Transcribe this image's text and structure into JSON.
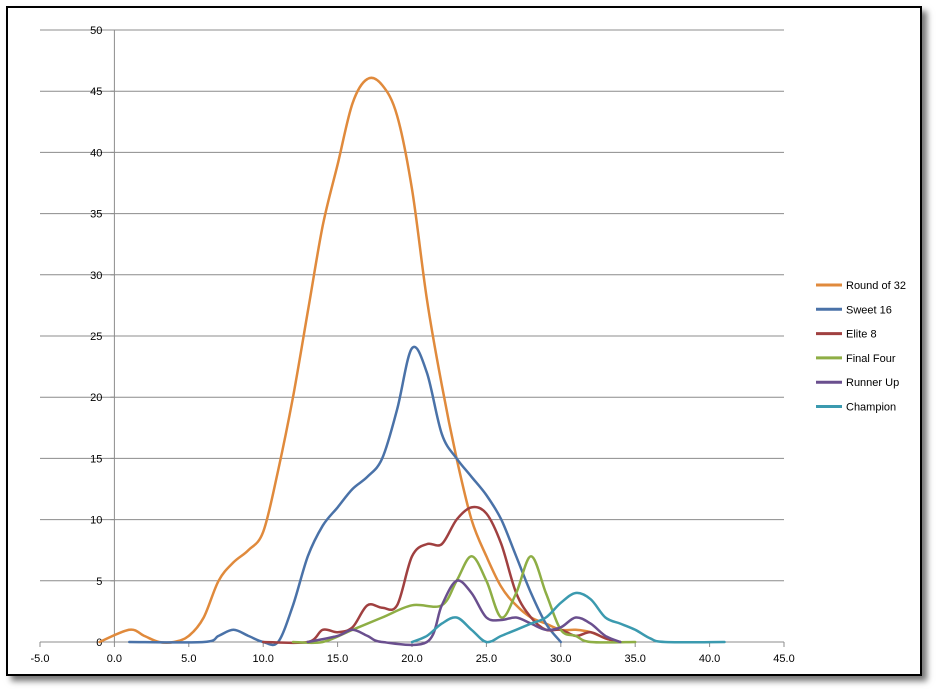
{
  "chart_data": {
    "type": "line",
    "title": "",
    "xlabel": "",
    "ylabel": "",
    "xlim": [
      -5,
      45
    ],
    "ylim": [
      0,
      50
    ],
    "x_ticks": [
      "-5.0",
      "0.0",
      "5.0",
      "10.0",
      "15.0",
      "20.0",
      "25.0",
      "30.0",
      "35.0",
      "40.0",
      "45.0"
    ],
    "y_ticks": [
      "0",
      "5",
      "10",
      "15",
      "20",
      "25",
      "30",
      "35",
      "40",
      "45",
      "50"
    ],
    "grid": "horizontal",
    "legend_position": "right",
    "series": [
      {
        "name": "Round of 32",
        "color": "#E08A3C",
        "points": [
          [
            -1,
            0
          ],
          [
            1,
            1
          ],
          [
            2,
            0.5
          ],
          [
            3,
            0
          ],
          [
            4,
            0
          ],
          [
            5,
            0.5
          ],
          [
            6,
            2
          ],
          [
            7,
            5
          ],
          [
            8,
            6.5
          ],
          [
            9,
            7.5
          ],
          [
            10,
            9
          ],
          [
            11,
            14
          ],
          [
            12,
            20
          ],
          [
            13,
            27
          ],
          [
            14,
            34
          ],
          [
            15,
            39
          ],
          [
            16,
            44
          ],
          [
            17,
            46
          ],
          [
            18,
            45.5
          ],
          [
            19,
            43
          ],
          [
            20,
            37
          ],
          [
            21,
            28
          ],
          [
            22,
            21
          ],
          [
            23,
            15
          ],
          [
            24,
            10
          ],
          [
            25,
            7
          ],
          [
            26,
            4.5
          ],
          [
            27,
            3
          ],
          [
            28,
            2
          ],
          [
            29,
            1.5
          ],
          [
            30,
            1
          ],
          [
            31,
            1
          ],
          [
            32,
            0.8
          ],
          [
            33,
            0.3
          ],
          [
            34,
            0
          ]
        ]
      },
      {
        "name": "Sweet 16",
        "color": "#4A72A8",
        "points": [
          [
            1,
            0
          ],
          [
            6,
            0
          ],
          [
            7,
            0.5
          ],
          [
            8,
            1
          ],
          [
            9,
            0.5
          ],
          [
            10,
            0
          ],
          [
            11,
            0
          ],
          [
            12,
            3
          ],
          [
            13,
            7
          ],
          [
            14,
            9.5
          ],
          [
            15,
            11
          ],
          [
            16,
            12.5
          ],
          [
            17,
            13.5
          ],
          [
            18,
            15
          ],
          [
            19,
            19
          ],
          [
            20,
            24
          ],
          [
            21,
            22
          ],
          [
            22,
            17
          ],
          [
            23,
            15
          ],
          [
            24,
            13.5
          ],
          [
            25,
            12
          ],
          [
            26,
            10
          ],
          [
            27,
            7
          ],
          [
            28,
            4
          ],
          [
            29,
            1.5
          ],
          [
            30,
            0
          ]
        ]
      },
      {
        "name": "Elite 8",
        "color": "#A04040",
        "points": [
          [
            10,
            0
          ],
          [
            13,
            0
          ],
          [
            14,
            1
          ],
          [
            15,
            0.8
          ],
          [
            16,
            1.2
          ],
          [
            17,
            3
          ],
          [
            18,
            2.8
          ],
          [
            19,
            3
          ],
          [
            20,
            7
          ],
          [
            21,
            8
          ],
          [
            22,
            8
          ],
          [
            23,
            10
          ],
          [
            24,
            11
          ],
          [
            25,
            10.5
          ],
          [
            26,
            8
          ],
          [
            27,
            4
          ],
          [
            28,
            2
          ],
          [
            29,
            1
          ],
          [
            30,
            1
          ],
          [
            31,
            0.5
          ],
          [
            32,
            0.8
          ],
          [
            33,
            0.3
          ],
          [
            34,
            0
          ]
        ]
      },
      {
        "name": "Final Four",
        "color": "#8EAE45",
        "points": [
          [
            12,
            0
          ],
          [
            14,
            0
          ],
          [
            16,
            1
          ],
          [
            18,
            2
          ],
          [
            20,
            3
          ],
          [
            22,
            3
          ],
          [
            23,
            5
          ],
          [
            24,
            7
          ],
          [
            25,
            5
          ],
          [
            26,
            2
          ],
          [
            27,
            4
          ],
          [
            28,
            7
          ],
          [
            29,
            4
          ],
          [
            30,
            1
          ],
          [
            31,
            0.5
          ],
          [
            32,
            0
          ],
          [
            35,
            0
          ]
        ]
      },
      {
        "name": "Runner Up",
        "color": "#6A4F8E",
        "points": [
          [
            13,
            0
          ],
          [
            15,
            0.5
          ],
          [
            16,
            1
          ],
          [
            17,
            0.5
          ],
          [
            18,
            0
          ],
          [
            21,
            0
          ],
          [
            22,
            3
          ],
          [
            23,
            5
          ],
          [
            24,
            4
          ],
          [
            25,
            2
          ],
          [
            26,
            1.8
          ],
          [
            27,
            2
          ],
          [
            28,
            1.5
          ],
          [
            29,
            1
          ],
          [
            30,
            1.2
          ],
          [
            31,
            2
          ],
          [
            32,
            1.5
          ],
          [
            33,
            0.5
          ],
          [
            34,
            0
          ]
        ]
      },
      {
        "name": "Champion",
        "color": "#3B9AAF",
        "points": [
          [
            20,
            0
          ],
          [
            21,
            0.5
          ],
          [
            22,
            1.5
          ],
          [
            23,
            2
          ],
          [
            24,
            1
          ],
          [
            25,
            0
          ],
          [
            26,
            0.5
          ],
          [
            27,
            1
          ],
          [
            28,
            1.5
          ],
          [
            29,
            2
          ],
          [
            30,
            3.2
          ],
          [
            31,
            4
          ],
          [
            32,
            3.5
          ],
          [
            33,
            2
          ],
          [
            34,
            1.5
          ],
          [
            35,
            1
          ],
          [
            36,
            0.3
          ],
          [
            37,
            0
          ],
          [
            41,
            0
          ]
        ]
      }
    ]
  }
}
